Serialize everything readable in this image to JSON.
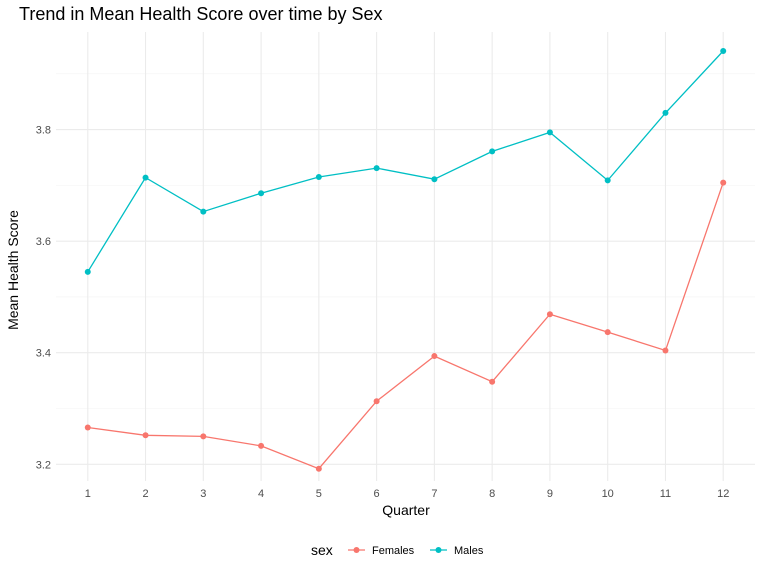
{
  "chart_data": {
    "type": "line",
    "title": "Trend in Mean Health Score over time by Sex",
    "xlabel": "Quarter",
    "ylabel": "Mean Health Score",
    "x": [
      1,
      2,
      3,
      4,
      5,
      6,
      7,
      8,
      9,
      10,
      11,
      12
    ],
    "x_ticks": [
      "1",
      "2",
      "3",
      "4",
      "5",
      "6",
      "7",
      "8",
      "9",
      "10",
      "11",
      "12"
    ],
    "y_ticks": [
      3.2,
      3.4,
      3.6,
      3.8
    ],
    "y_tick_labels": [
      "3.2",
      "3.4",
      "3.6",
      "3.8"
    ],
    "xlim": [
      0.45,
      12.55
    ],
    "ylim": [
      3.17,
      3.975
    ],
    "grid": true,
    "legend": {
      "title": "sex",
      "position": "bottom"
    },
    "series": [
      {
        "name": "Females",
        "color": "#F8766D",
        "values": [
          3.266,
          3.252,
          3.25,
          3.233,
          3.192,
          3.313,
          3.394,
          3.348,
          3.469,
          3.437,
          3.404,
          3.705
        ]
      },
      {
        "name": "Males",
        "color": "#00BFC4",
        "values": [
          3.545,
          3.714,
          3.653,
          3.686,
          3.715,
          3.731,
          3.711,
          3.761,
          3.795,
          3.709,
          3.83,
          3.941
        ]
      }
    ]
  }
}
